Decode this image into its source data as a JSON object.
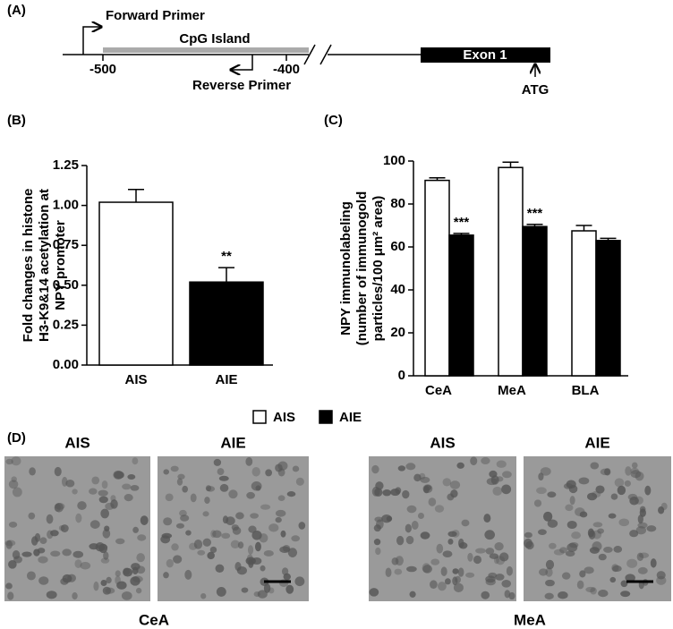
{
  "panel_a": {
    "label": "(A)",
    "forward_primer": "Forward Primer",
    "cpg_island": "CpG Island",
    "reverse_primer": "Reverse Primer",
    "positions": [
      "-500",
      "-400"
    ],
    "exon": "Exon 1",
    "atg": "ATG"
  },
  "chart_data": [
    {
      "type": "bar",
      "panel_label": "(B)",
      "ylabel": [
        "Fold changes in histone",
        "H3-K9&14 acetylation at",
        "NPY promoter"
      ],
      "categories": [
        "AIS",
        "AIE"
      ],
      "values": [
        1.02,
        0.52
      ],
      "errors": [
        0.08,
        0.09
      ],
      "colors": [
        "#ffffff",
        "#000000"
      ],
      "ylim": [
        0,
        1.25
      ],
      "yticks": [
        {
          "value": 0,
          "label": "0.00"
        },
        {
          "value": 0.25,
          "label": "0.25"
        },
        {
          "value": 0.5,
          "label": "0.50"
        },
        {
          "value": 0.75,
          "label": "0.75"
        },
        {
          "value": 1,
          "label": "1.00"
        },
        {
          "value": 1.25,
          "label": "1.25"
        }
      ],
      "annotations": [
        {
          "text": "**",
          "category": "AIE"
        }
      ]
    },
    {
      "type": "grouped_bar",
      "panel_label": "(C)",
      "ylabel": [
        "NPY immunolabeling",
        "(number of immunogold",
        "particles/100 μm² area)"
      ],
      "categories": [
        "CeA",
        "MeA",
        "BLA"
      ],
      "series": [
        {
          "name": "AIS",
          "color": "#ffffff",
          "values": [
            91,
            97,
            67.5
          ],
          "errors": [
            1.2,
            2.5,
            2.5
          ]
        },
        {
          "name": "AIE",
          "color": "#000000",
          "values": [
            65.5,
            69.5,
            63
          ],
          "errors": [
            0.8,
            1,
            1
          ]
        }
      ],
      "ylim": [
        0,
        100
      ],
      "yticks": [
        0,
        20,
        40,
        60,
        80,
        100
      ],
      "annotations": [
        {
          "text": "***",
          "category": "CeA",
          "series": "AIE"
        },
        {
          "text": "***",
          "category": "MeA",
          "series": "AIE"
        }
      ]
    }
  ],
  "panel_d": {
    "label": "(D)",
    "image_titles": [
      "AIS",
      "AIE",
      "AIS",
      "AIE"
    ],
    "regions": [
      "CeA",
      "MeA"
    ]
  }
}
